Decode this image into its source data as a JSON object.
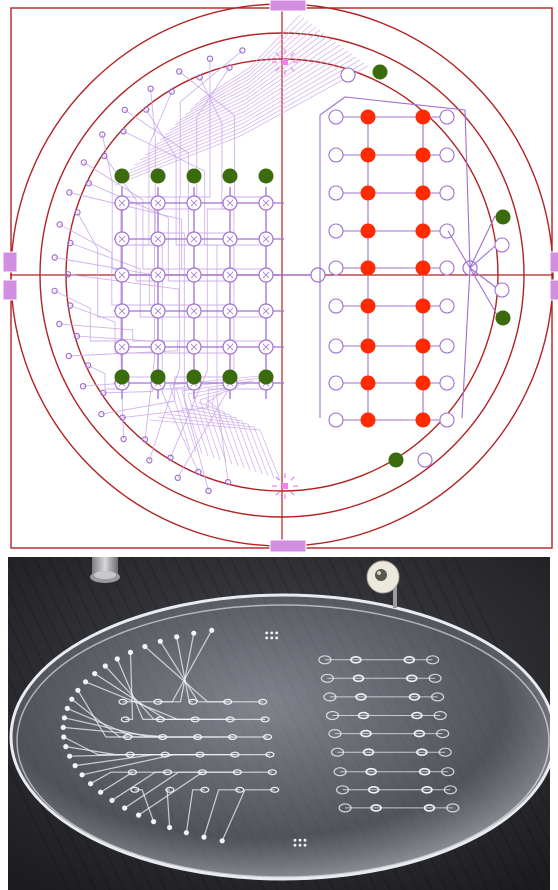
{
  "figure": {
    "panels": [
      "layout-drawing",
      "chip-photo"
    ]
  },
  "layout": {
    "grid_rows": 6,
    "grid_cols": 5,
    "colors": {
      "frame": "#b22222",
      "channel": "#c9a6e8",
      "channel_dark": "#a070d0",
      "alignment_mark": "#ee82ee",
      "inlet_dot": "#3a6b0d",
      "outlet_dot": "#ff2a00",
      "pad": "#d28ee0"
    },
    "green_dot_count": 14,
    "red_dot_count": 18
  },
  "photo": {
    "colors": {
      "background": "#2a2a2e",
      "wafer": "#c9ccd4",
      "channel": "#f2f4f8"
    }
  }
}
